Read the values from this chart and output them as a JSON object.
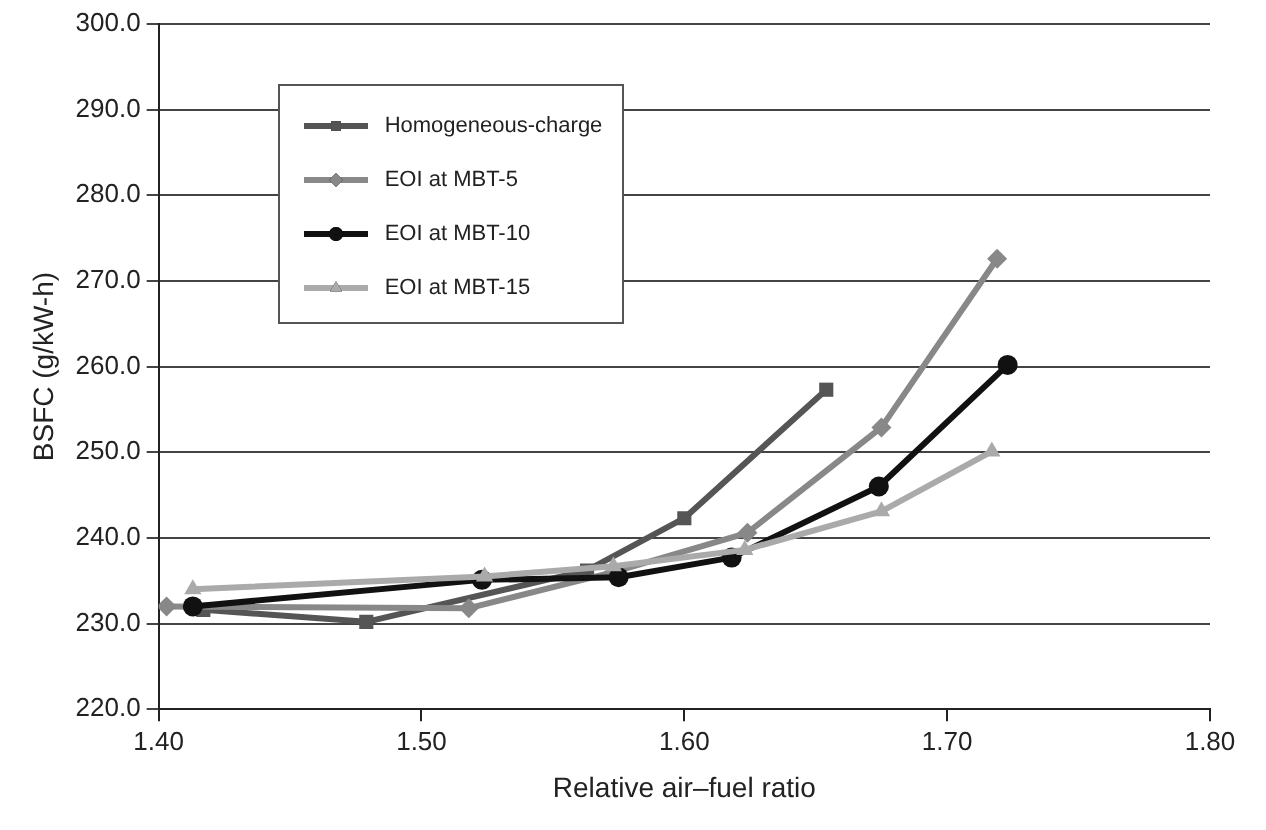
{
  "chart_data": {
    "type": "line",
    "xlabel": "Relative air–fuel ratio",
    "ylabel": "BSFC (g/kW-h)",
    "xlim": [
      1.4,
      1.8
    ],
    "xticks": [
      {
        "value": 1.4,
        "label": "1.40"
      },
      {
        "value": 1.5,
        "label": "1.50"
      },
      {
        "value": 1.6,
        "label": "1.60"
      },
      {
        "value": 1.7,
        "label": "1.70"
      },
      {
        "value": 1.8,
        "label": "1.80"
      }
    ],
    "ylim": [
      220,
      300
    ],
    "yticks": [
      {
        "value": 220,
        "label": "220.0"
      },
      {
        "value": 230,
        "label": "230.0"
      },
      {
        "value": 240,
        "label": "240.0"
      },
      {
        "value": 250,
        "label": "250.0"
      },
      {
        "value": 260,
        "label": "260.0"
      },
      {
        "value": 270,
        "label": "270.0"
      },
      {
        "value": 280,
        "label": "280.0"
      },
      {
        "value": 290,
        "label": "290.0"
      },
      {
        "value": 300,
        "label": "300.0"
      }
    ],
    "grid": "y",
    "legend": "top left",
    "line_style": "solid",
    "series": [
      {
        "name": "Homogeneous-charge",
        "color": "#555555",
        "marker": "square",
        "x": [
          1.417,
          1.479,
          1.563,
          1.6,
          1.654
        ],
        "values": [
          231.6,
          230.2,
          236.2,
          242.3,
          257.3
        ]
      },
      {
        "name": "EOI at MBT-5",
        "color": "#888888",
        "marker": "diamond",
        "x": [
          1.403,
          1.518,
          1.573,
          1.624,
          1.675,
          1.719
        ],
        "values": [
          232.0,
          231.8,
          236.0,
          240.6,
          252.9,
          272.6
        ]
      },
      {
        "name": "EOI at MBT-10",
        "color": "#111111",
        "marker": "circle",
        "x": [
          1.413,
          1.523,
          1.575,
          1.618,
          1.674,
          1.723
        ],
        "values": [
          232.0,
          235.1,
          235.4,
          237.7,
          246.0,
          260.2
        ]
      },
      {
        "name": "EOI at MBT-15",
        "color": "#aaaaaa",
        "marker": "triangle",
        "x": [
          1.413,
          1.524,
          1.573,
          1.623,
          1.675,
          1.717
        ],
        "values": [
          234.0,
          235.5,
          236.7,
          238.6,
          243.1,
          250.1
        ]
      }
    ]
  }
}
